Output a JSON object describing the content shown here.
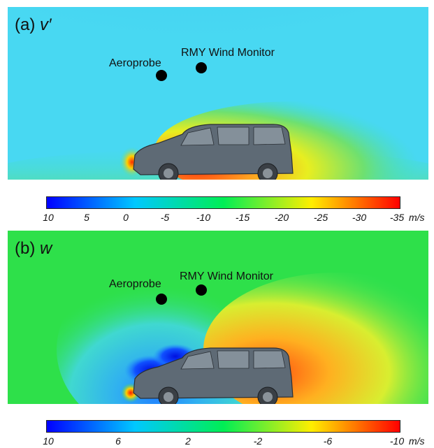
{
  "panels": [
    {
      "label_prefix": "(a)",
      "label_symbol": "v′",
      "probes": [
        {
          "name": "Aeroprobe"
        },
        {
          "name": "RMY Wind Monitor"
        }
      ],
      "colorbar": {
        "ticks": [
          "10",
          "5",
          "0",
          "-5",
          "-10",
          "-15",
          "-20",
          "-25",
          "-30",
          "-35"
        ],
        "unit": "m/s",
        "range": [
          10,
          -35
        ],
        "colors": [
          "#0000ff",
          "#00c8ff",
          "#00ee55",
          "#ffee00",
          "#ff0000"
        ]
      }
    },
    {
      "label_prefix": "(b)",
      "label_symbol": "w",
      "probes": [
        {
          "name": "Aeroprobe"
        },
        {
          "name": "RMY Wind Monitor"
        }
      ],
      "colorbar": {
        "ticks": [
          "10",
          "6",
          "2",
          "-2",
          "-6",
          "-10"
        ],
        "unit": "m/s",
        "range": [
          10,
          -10
        ],
        "colors": [
          "#0000ff",
          "#00c8ff",
          "#00ee55",
          "#ffee00",
          "#ff0000"
        ]
      }
    }
  ]
}
